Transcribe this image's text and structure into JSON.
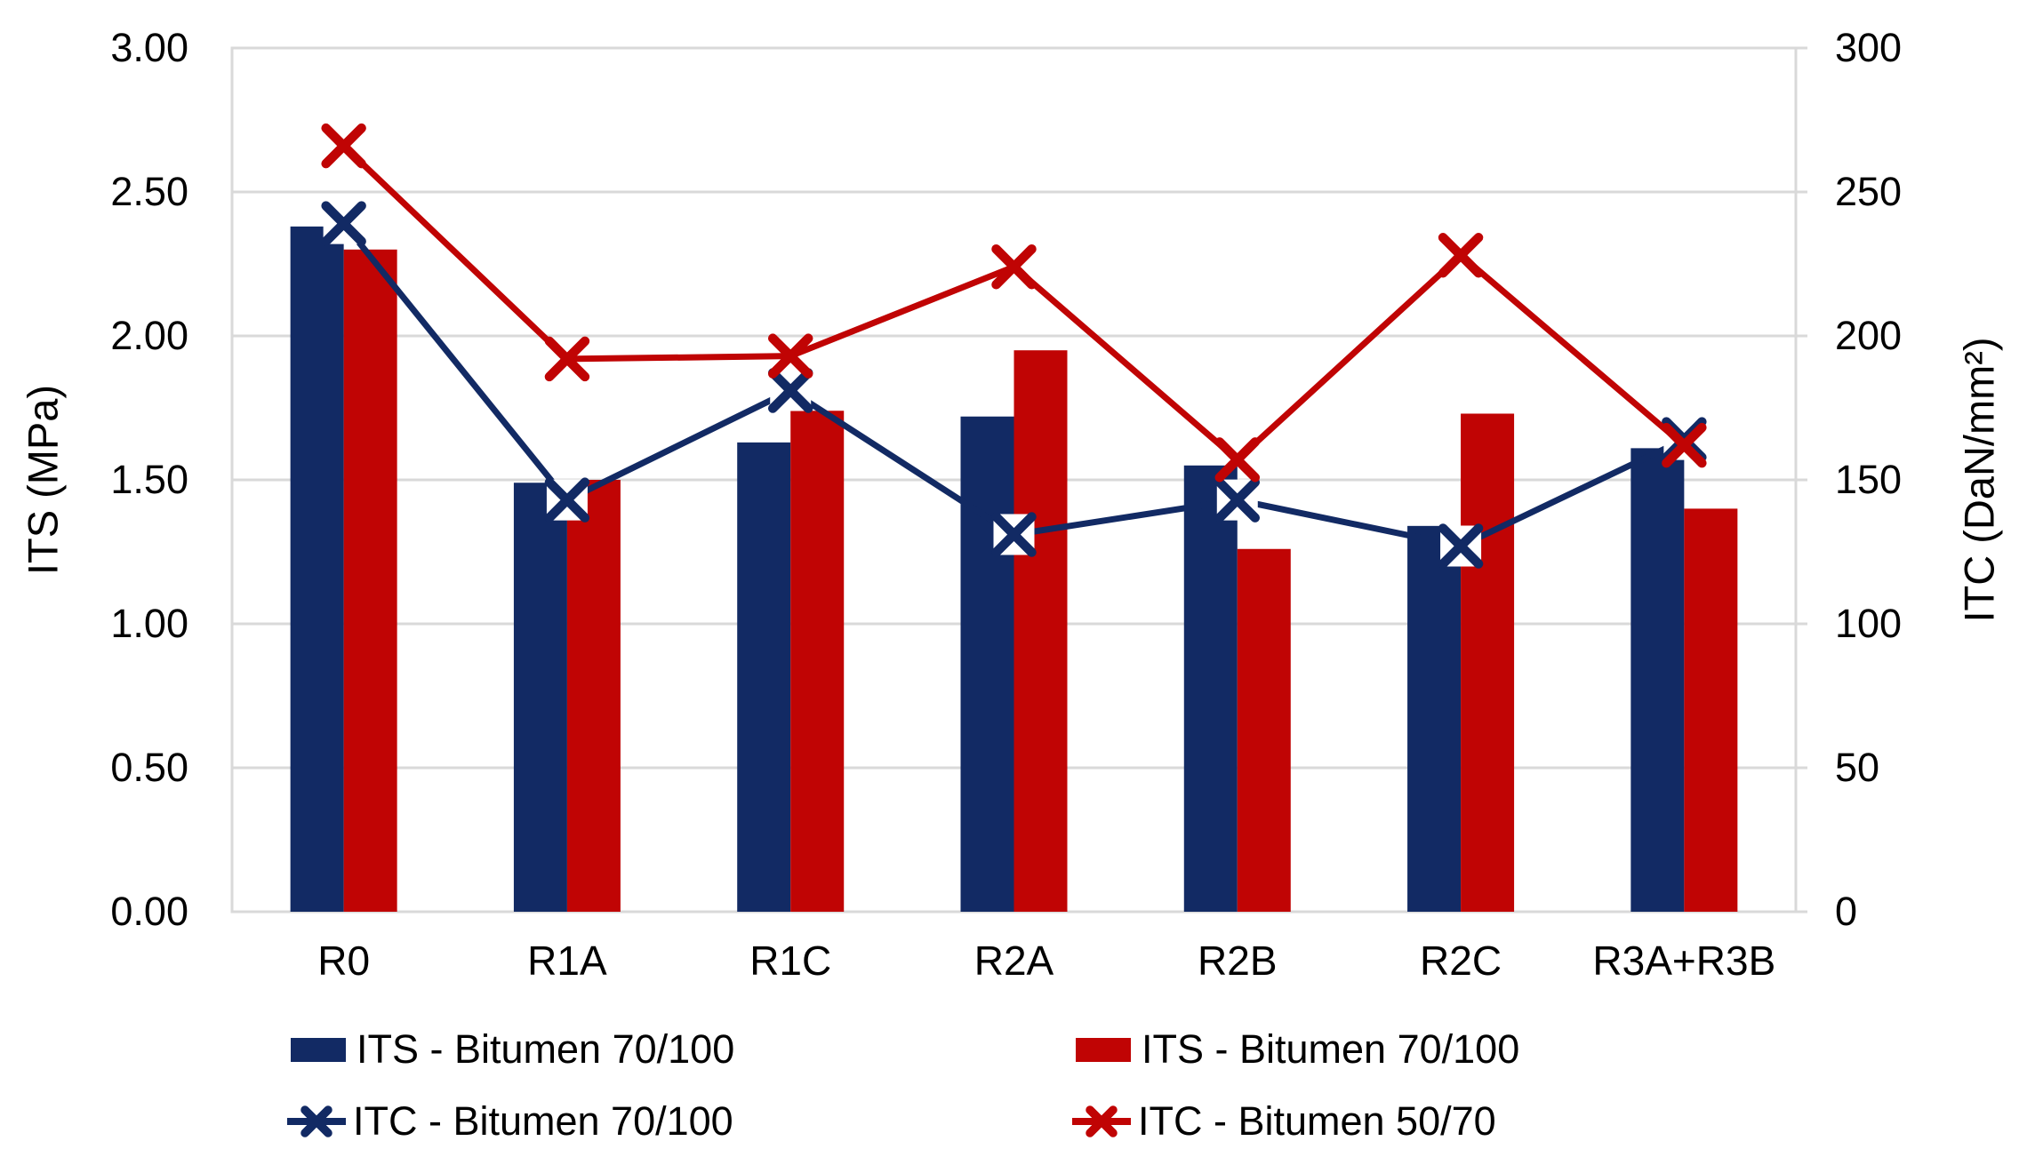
{
  "chart_data": {
    "type": "bar+line",
    "categories": [
      "R0",
      "R1A",
      "R1C",
      "R2A",
      "R2B",
      "R2C",
      "R3A+R3B"
    ],
    "series": [
      {
        "name": "ITS - Bitumen 70/100",
        "type": "bar",
        "axis": "left",
        "color": "navy",
        "values": [
          2.38,
          1.49,
          1.63,
          1.72,
          1.55,
          1.34,
          1.61
        ]
      },
      {
        "name": "ITS - Bitumen 70/100",
        "type": "bar",
        "axis": "left",
        "color": "red",
        "values": [
          2.3,
          1.5,
          1.74,
          1.95,
          1.26,
          1.73,
          1.4
        ]
      },
      {
        "name": "ITC - Bitumen 70/100",
        "type": "line",
        "axis": "right",
        "color": "navy",
        "marker": "x",
        "values": [
          239,
          143,
          181,
          131,
          143,
          127,
          164
        ]
      },
      {
        "name": "ITC - Bitumen 50/70",
        "type": "line",
        "axis": "right",
        "color": "red",
        "marker": "x",
        "values": [
          266,
          192,
          193,
          224,
          157,
          228,
          162
        ]
      }
    ],
    "ylabel_left": "ITS (MPa)",
    "ylabel_right": "ITC (DaN/mm²)",
    "yticks_left": [
      "3.00",
      "2.50",
      "2.00",
      "1.50",
      "1.00",
      "0.50",
      "0.00"
    ],
    "yticks_right": [
      "300",
      "250",
      "200",
      "150",
      "100",
      "50",
      "0"
    ],
    "ylim_left": [
      0,
      3.0
    ],
    "ylim_right": [
      0,
      300
    ],
    "grid": true,
    "legend_position": "bottom-two-columns",
    "colors": {
      "navy": "#122a64",
      "red": "#c00404",
      "grid": "#d9d9d9",
      "text": "#000000"
    }
  }
}
